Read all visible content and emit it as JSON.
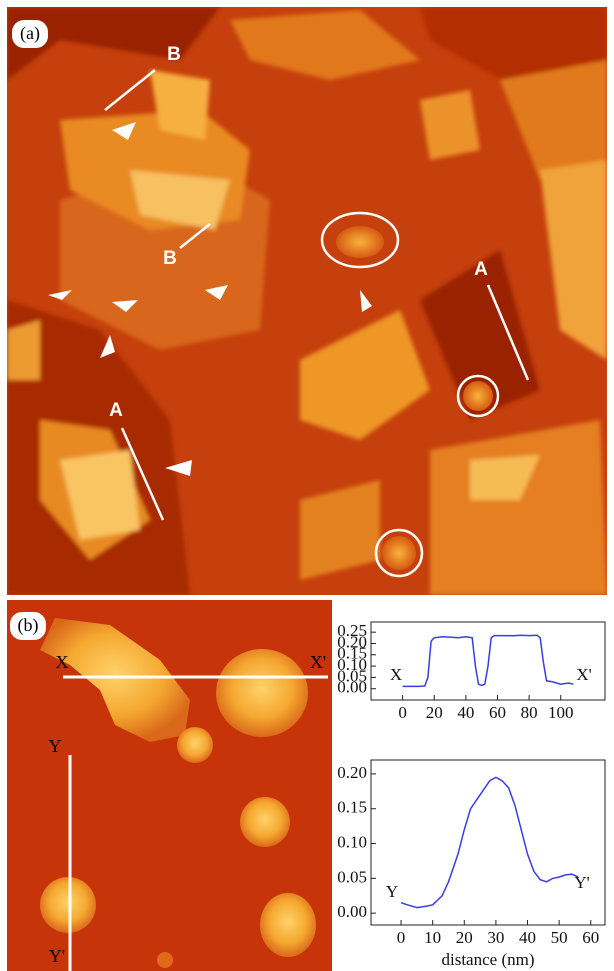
{
  "panels": {
    "a": {
      "label": "(a)",
      "marks": [
        "B",
        "B",
        "A",
        "A"
      ]
    },
    "b": {
      "label": "(b)",
      "marks": [
        "X",
        "X'",
        "Y",
        "Y'"
      ]
    }
  },
  "chart_data": [
    {
      "type": "line",
      "color": "#3a3ee0",
      "x": [
        0,
        5,
        10,
        14,
        16,
        18,
        20,
        25,
        30,
        35,
        40,
        44,
        46,
        48,
        50,
        52,
        54,
        56,
        58,
        60,
        65,
        70,
        75,
        80,
        85,
        87,
        89,
        91,
        95,
        100,
        105,
        108
      ],
      "values": [
        0.01,
        0.01,
        0.01,
        0.012,
        0.05,
        0.21,
        0.225,
        0.23,
        0.228,
        0.225,
        0.23,
        0.225,
        0.1,
        0.02,
        0.015,
        0.02,
        0.1,
        0.225,
        0.235,
        0.235,
        0.235,
        0.234,
        0.236,
        0.235,
        0.236,
        0.225,
        0.12,
        0.035,
        0.03,
        0.02,
        0.025,
        0.02
      ],
      "xlim": [
        -20,
        128
      ],
      "ylim": [
        -0.05,
        0.295
      ],
      "xticks": [
        0,
        20,
        40,
        60,
        80,
        100
      ],
      "yticks": [
        {
          "value": 0,
          "label": "0.00"
        },
        0.05,
        {
          "value": 0.1,
          "label": "0.10"
        },
        0.15,
        {
          "value": 0.2,
          "label": "0.20"
        },
        0.25
      ],
      "annotations": [
        "X",
        "X'"
      ]
    },
    {
      "type": "line",
      "color": "#3a3ee0",
      "x": [
        0,
        2,
        5,
        8,
        10,
        13,
        15,
        18,
        20,
        22,
        25,
        28,
        30,
        32,
        34,
        36,
        38,
        40,
        42,
        44,
        46,
        48,
        50,
        52,
        54,
        56
      ],
      "values": [
        0.015,
        0.012,
        0.008,
        0.01,
        0.012,
        0.025,
        0.045,
        0.085,
        0.12,
        0.15,
        0.17,
        0.19,
        0.195,
        0.19,
        0.18,
        0.155,
        0.12,
        0.085,
        0.06,
        0.048,
        0.045,
        0.05,
        0.052,
        0.055,
        0.056,
        0.052
      ],
      "xlim": [
        -9.5,
        64.5
      ],
      "ylim": [
        -0.017,
        0.22
      ],
      "xticks": [
        0,
        10,
        20,
        30,
        40,
        50,
        60
      ],
      "yticks": [
        {
          "value": 0,
          "label": "0.00"
        },
        0.05,
        {
          "value": 0.1,
          "label": "0.10"
        },
        0.15,
        {
          "value": 0.2,
          "label": "0.20"
        }
      ],
      "xlabel": "distance (nm)",
      "annotations": [
        "Y",
        "Y'"
      ]
    }
  ]
}
